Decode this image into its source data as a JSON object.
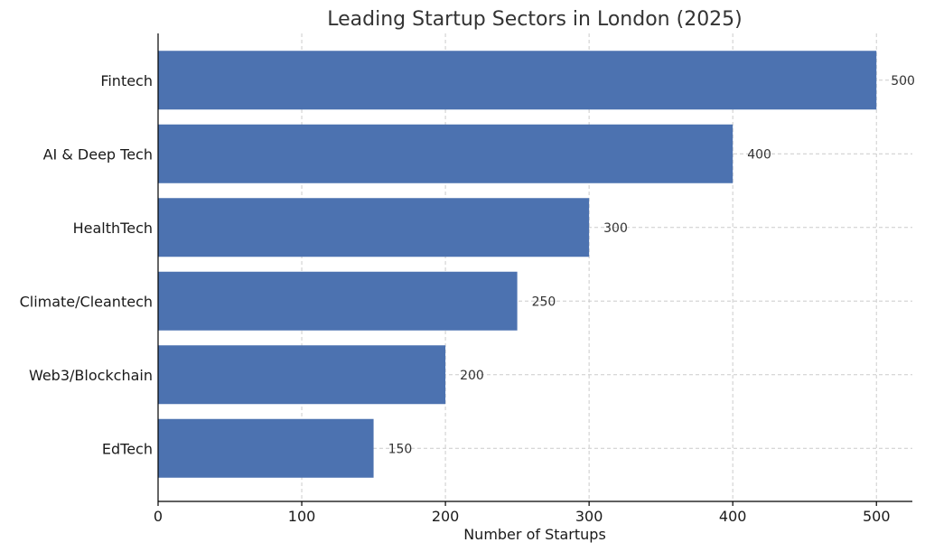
{
  "chart_data": {
    "type": "bar",
    "orientation": "horizontal",
    "title": "Leading Startup Sectors in London (2025)",
    "xlabel": "Number of Startups",
    "ylabel": "",
    "categories": [
      "Fintech",
      "AI & Deep Tech",
      "HealthTech",
      "Climate/Cleantech",
      "Web3/Blockchain",
      "EdTech"
    ],
    "values": [
      500,
      400,
      300,
      250,
      200,
      150
    ],
    "xlim": [
      0,
      525
    ],
    "xticks": [
      0,
      100,
      200,
      300,
      400,
      500
    ],
    "grid": true,
    "legend": "none",
    "bar_color": "#4c72b0"
  }
}
